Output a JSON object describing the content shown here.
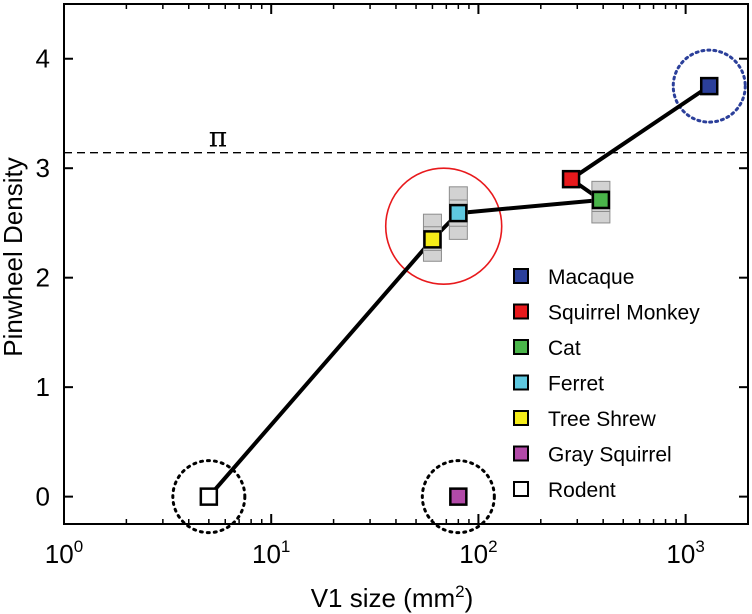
{
  "chart_data": {
    "type": "scatter",
    "title": "",
    "xlabel": "V1 size (mm",
    "xlabel_sup": "2",
    "xlabel_close": ")",
    "ylabel": "Pinwheel Density",
    "x_scale": "log",
    "xlim": [
      1,
      2000
    ],
    "ylim": [
      -0.25,
      4.5
    ],
    "x_ticks": [
      {
        "value": 1,
        "base": "10",
        "exp": "0"
      },
      {
        "value": 10,
        "base": "10",
        "exp": "1"
      },
      {
        "value": 100,
        "base": "10",
        "exp": "2"
      },
      {
        "value": 1000,
        "base": "10",
        "exp": "3"
      }
    ],
    "y_ticks": [
      {
        "value": 0,
        "label": "0"
      },
      {
        "value": 1,
        "label": "1"
      },
      {
        "value": 2,
        "label": "2"
      },
      {
        "value": 3,
        "label": "3"
      },
      {
        "value": 4,
        "label": "4"
      }
    ],
    "reference_line": {
      "y": 3.14159,
      "label": "π",
      "style": "dashed"
    },
    "series": [
      {
        "name": "Macaque",
        "x": 1300,
        "y": 3.75,
        "color": "#2b3f9a",
        "error": null
      },
      {
        "name": "Squirrel Monkey",
        "x": 280,
        "y": 2.9,
        "color": "#e8191c",
        "error": null
      },
      {
        "name": "Cat",
        "x": 390,
        "y": 2.71,
        "color": "#4ab54a",
        "error": [
          2.5,
          2.88
        ]
      },
      {
        "name": "Ferret",
        "x": 80,
        "y": 2.59,
        "color": "#5ec8e0",
        "error": [
          2.35,
          2.83
        ]
      },
      {
        "name": "Tree Shrew",
        "x": 60,
        "y": 2.35,
        "color": "#f5ec19",
        "error": [
          2.15,
          2.58
        ]
      },
      {
        "name": "Gray Squirrel",
        "x": 80,
        "y": 0.0,
        "color": "#b24aa8",
        "error": null
      },
      {
        "name": "Rodent",
        "x": 5,
        "y": 0.0,
        "color": "#ffffff",
        "error": null
      }
    ],
    "connecting_line": [
      "Rodent",
      "Tree Shrew",
      "Ferret",
      "Cat",
      "Squirrel Monkey",
      "Macaque"
    ],
    "annotations": [
      {
        "type": "circle",
        "around": "Ferret",
        "x": 68,
        "y": 2.47,
        "style": "solid",
        "color": "#e8191c"
      },
      {
        "type": "circle",
        "around": "Macaque",
        "x": 1300,
        "y": 3.75,
        "style": "dotted",
        "color": "#2b3f9a"
      },
      {
        "type": "circle",
        "around": "Rodent",
        "x": 5,
        "y": 0.0,
        "style": "dotted",
        "color": "#000000"
      },
      {
        "type": "circle",
        "around": "Gray Squirrel",
        "x": 80,
        "y": 0.0,
        "style": "dotted",
        "color": "#000000"
      }
    ],
    "legend_position": "lower-right",
    "grid": false
  }
}
